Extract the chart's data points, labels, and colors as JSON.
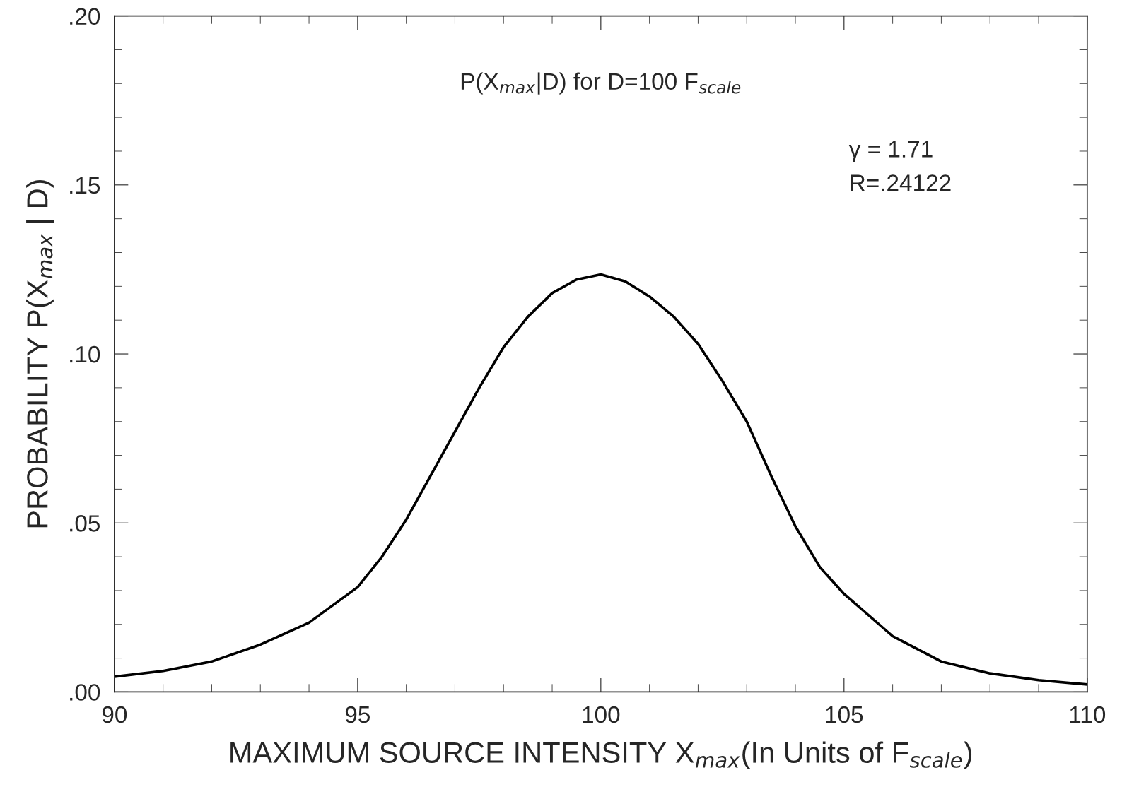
{
  "chart_data": {
    "type": "line",
    "title": "P(X$_{max}$|D) for D=100 F$_{scale}$",
    "xlabel": "MAXIMUM SOURCE INTENSITY X$_{max}$(In Units of F$_{scale}$)",
    "ylabel": "PROBABILITY P(X$_{max}$ | D)",
    "annotations": [
      "γ = 1.71",
      "R=.24122"
    ],
    "series": [
      {
        "color": "#000000",
        "x": [
          90,
          91,
          92,
          93,
          94,
          95,
          95.5,
          96,
          96.5,
          97,
          97.5,
          98,
          98.5,
          99,
          99.5,
          100,
          100.5,
          101,
          101.5,
          102,
          102.5,
          103,
          103.5,
          104,
          104.5,
          105,
          106,
          107,
          108,
          109,
          110
        ],
        "values": [
          0.0045,
          0.0062,
          0.009,
          0.014,
          0.0205,
          0.031,
          0.04,
          0.051,
          0.064,
          0.077,
          0.09,
          0.102,
          0.111,
          0.118,
          0.122,
          0.1235,
          0.1215,
          0.117,
          0.111,
          0.103,
          0.092,
          0.08,
          0.064,
          0.049,
          0.037,
          0.029,
          0.0165,
          0.009,
          0.0055,
          0.0035,
          0.0022
        ]
      }
    ],
    "xlim": [
      90,
      110
    ],
    "xticks": [
      90,
      95,
      100,
      105,
      110
    ],
    "ylim": [
      0,
      0.2
    ],
    "yticks": [
      {
        "value": 0,
        "label": ".00"
      },
      {
        "value": 0.05,
        "label": ".05"
      },
      {
        "value": 0.1,
        "label": ".10"
      },
      {
        "value": 0.15,
        "label": ".15"
      },
      {
        "value": 0.2,
        "label": ".20"
      }
    ],
    "grid": false,
    "legend": false,
    "marker": "none",
    "line_style": "solid"
  }
}
